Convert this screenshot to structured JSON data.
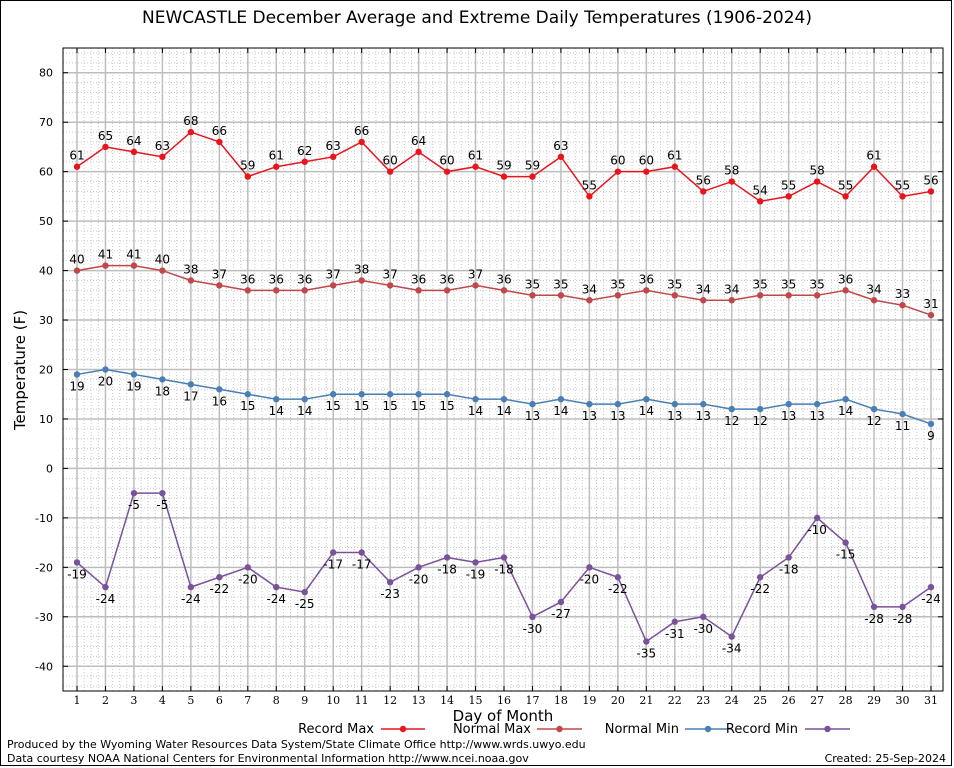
{
  "chart_data": {
    "type": "line",
    "title": "NEWCASTLE December Average and Extreme Daily Temperatures (1906-2024)",
    "xlabel": "Day of Month",
    "ylabel": "Temperature (F)",
    "xlim": [
      1,
      31
    ],
    "ylim": [
      -45,
      85
    ],
    "yticks": [
      -40,
      -30,
      -20,
      -10,
      0,
      10,
      20,
      30,
      40,
      50,
      60,
      70,
      80
    ],
    "x": [
      1,
      2,
      3,
      4,
      5,
      6,
      7,
      8,
      9,
      10,
      11,
      12,
      13,
      14,
      15,
      16,
      17,
      18,
      19,
      20,
      21,
      22,
      23,
      24,
      25,
      26,
      27,
      28,
      29,
      30,
      31
    ],
    "grid": true,
    "legend_position": "bottom",
    "series": [
      {
        "name": "Record Max",
        "color": "#e8161c",
        "values": [
          61,
          65,
          64,
          63,
          68,
          66,
          59,
          61,
          62,
          63,
          66,
          60,
          64,
          60,
          61,
          59,
          59,
          63,
          55,
          60,
          60,
          61,
          56,
          58,
          54,
          55,
          58,
          55,
          61,
          55,
          56
        ]
      },
      {
        "name": "Normal Max",
        "color": "#c0484a",
        "values": [
          40,
          41,
          41,
          40,
          38,
          37,
          36,
          36,
          36,
          37,
          38,
          37,
          36,
          36,
          37,
          36,
          35,
          35,
          34,
          35,
          36,
          35,
          34,
          34,
          35,
          35,
          35,
          36,
          34,
          33,
          31
        ]
      },
      {
        "name": "Normal Min",
        "color": "#4a7fb5",
        "values": [
          19,
          20,
          19,
          18,
          17,
          16,
          15,
          14,
          14,
          15,
          15,
          15,
          15,
          15,
          14,
          14,
          13,
          14,
          13,
          13,
          14,
          13,
          13,
          12,
          12,
          13,
          13,
          14,
          12,
          11,
          9
        ]
      },
      {
        "name": "Record Min",
        "color": "#7a529a",
        "values": [
          -19,
          -24,
          -5,
          -5,
          -24,
          -22,
          -20,
          -24,
          -25,
          -17,
          -17,
          -23,
          -20,
          -18,
          -19,
          -18,
          -30,
          -27,
          -20,
          -22,
          -35,
          -31,
          -30,
          -34,
          -22,
          -18,
          -10,
          -15,
          -28,
          -28,
          -24
        ]
      }
    ]
  },
  "footer": {
    "produced_by": "Produced by the Wyoming Water Resources Data System/State Climate Office http://www.wrds.uwyo.edu",
    "data_courtesy": "Data courtesy NOAA National Centers for Environmental Information http://www.ncei.noaa.gov",
    "created": "Created:  25-Sep-2024"
  }
}
